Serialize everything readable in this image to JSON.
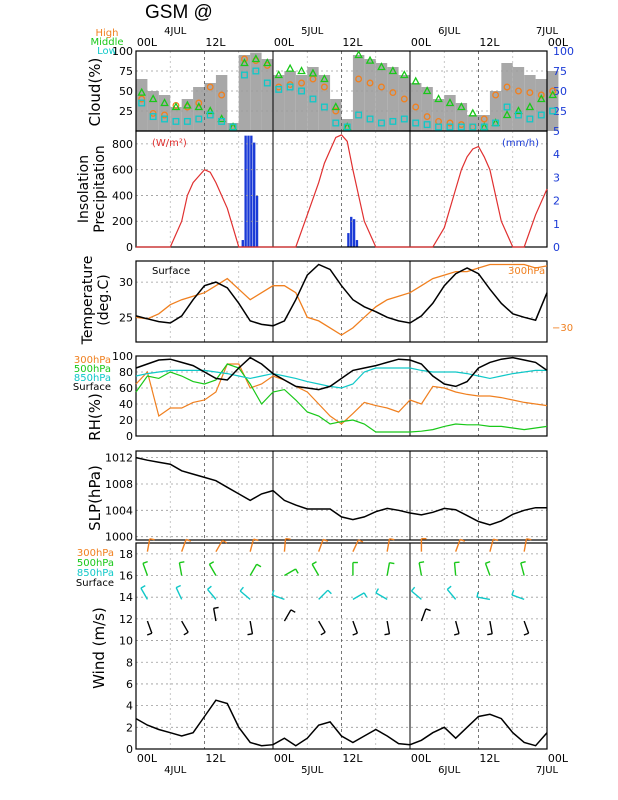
{
  "title": "GSM  @",
  "time_axis": {
    "hours_total": 72,
    "hour_labels": [
      "00L",
      "12L",
      "00L",
      "12L",
      "00L",
      "12L",
      "00L"
    ],
    "hour_label_positions_h": [
      0,
      12,
      24,
      36,
      48,
      60,
      72
    ],
    "date_labels": [
      "4JUL",
      "5JUL",
      "6JUL",
      "7JUL"
    ],
    "date_label_positions_h": [
      6,
      30,
      54,
      82
    ]
  },
  "colors": {
    "high": "#f08020",
    "middle": "#19c819",
    "low": "#10c8c8",
    "surface": "#000000",
    "insolation": "#e03030",
    "precip": "#1a3ad6",
    "rhs": "#1a3ad6"
  },
  "panels": {
    "cloud": {
      "ylabel": "Cloud(%)",
      "legend": [
        "High",
        "Middle",
        "Low"
      ],
      "yticks": [
        "25",
        "50",
        "75",
        "100"
      ],
      "yticks_right": [
        "25",
        "50",
        "75",
        "100"
      ]
    },
    "insolation": {
      "ylabel_top": "Insolation",
      "ylabel_bottom": "Precipitation",
      "unit_left": "(W/m²)",
      "unit_right": "(mm/h)",
      "yticks": [
        "0",
        "200",
        "400",
        "600",
        "800"
      ],
      "yticks_right": [
        "0",
        "1",
        "2",
        "3",
        "4",
        "5"
      ]
    },
    "temperature": {
      "ylabel_top": "Temperature",
      "ylabel_bottom": "(deg.C)",
      "label_surface": "Surface",
      "label_300": "300hPa",
      "right_tick": "−30",
      "yticks": [
        "25",
        "30"
      ]
    },
    "rh": {
      "ylabel": "RH(%)",
      "legend": [
        "300hPa",
        "500hPa",
        "850hPa",
        "Surface"
      ],
      "yticks": [
        "0",
        "20",
        "40",
        "60",
        "80",
        "100"
      ]
    },
    "slp": {
      "ylabel": "SLP(hPa)",
      "yticks": [
        "1000",
        "1004",
        "1008",
        "1012"
      ]
    },
    "wind": {
      "ylabel": "Wind  (m/s)",
      "legend": [
        "300hPa",
        "500hPa",
        "850hPa",
        "Surface"
      ],
      "yticks": [
        "0",
        "2",
        "4",
        "6",
        "8",
        "10",
        "12",
        "14",
        "16",
        "18"
      ]
    }
  },
  "chart_data": [
    {
      "type": "bar",
      "title": "",
      "ylabel": "Cloud(%)",
      "ylim": [
        0,
        100
      ],
      "x_hours": [
        0,
        2,
        4,
        6,
        8,
        10,
        12,
        14,
        16,
        18,
        20,
        22,
        24,
        26,
        28,
        30,
        32,
        34,
        36,
        38,
        40,
        42,
        44,
        46,
        48,
        50,
        52,
        54,
        56,
        58,
        60,
        62,
        64,
        66,
        68,
        70,
        72
      ],
      "total_cover": [
        65,
        50,
        45,
        30,
        40,
        55,
        60,
        70,
        10,
        95,
        98,
        90,
        70,
        75,
        70,
        80,
        70,
        40,
        15,
        95,
        90,
        85,
        80,
        70,
        60,
        55,
        40,
        45,
        35,
        20,
        20,
        50,
        85,
        80,
        70,
        65,
        75
      ],
      "series": [
        {
          "name": "High",
          "values": [
            40,
            22,
            20,
            32,
            30,
            35,
            55,
            45,
            5,
            90,
            88,
            82,
            55,
            58,
            60,
            65,
            55,
            25,
            5,
            65,
            60,
            55,
            48,
            40,
            30,
            18,
            12,
            10,
            8,
            5,
            15,
            45,
            55,
            50,
            48,
            45,
            50
          ]
        },
        {
          "name": "Middle",
          "values": [
            48,
            40,
            35,
            30,
            32,
            30,
            25,
            15,
            5,
            85,
            90,
            85,
            70,
            78,
            75,
            72,
            65,
            30,
            5,
            95,
            88,
            80,
            75,
            70,
            62,
            50,
            40,
            35,
            30,
            22,
            5,
            10,
            20,
            25,
            30,
            40,
            45
          ]
        },
        {
          "name": "Low",
          "values": [
            35,
            18,
            15,
            12,
            12,
            15,
            20,
            12,
            5,
            70,
            75,
            60,
            52,
            55,
            50,
            40,
            30,
            10,
            5,
            20,
            15,
            10,
            12,
            15,
            10,
            8,
            5,
            5,
            5,
            5,
            5,
            10,
            30,
            20,
            15,
            20,
            25
          ]
        }
      ]
    },
    {
      "type": "bar",
      "title": "",
      "ylabel": "Insolation Precipitation",
      "ylim": [
        0,
        900
      ],
      "ylim_right": [
        0,
        5
      ],
      "insolation_x": [
        0,
        2,
        4,
        6,
        8,
        9,
        10,
        11,
        12,
        13,
        14,
        16,
        18,
        20,
        22,
        24,
        26,
        28,
        30,
        32,
        33,
        34,
        35,
        36,
        37,
        38,
        40,
        42,
        44,
        46,
        48,
        50,
        52,
        54,
        56,
        57,
        58,
        59,
        60,
        61,
        62,
        64,
        66,
        68,
        70,
        72
      ],
      "insolation": [
        0,
        0,
        0,
        0,
        200,
        400,
        500,
        550,
        600,
        580,
        500,
        300,
        0,
        0,
        0,
        0,
        0,
        0,
        250,
        500,
        650,
        750,
        850,
        870,
        820,
        600,
        200,
        0,
        0,
        0,
        0,
        0,
        0,
        150,
        450,
        600,
        700,
        760,
        780,
        700,
        600,
        200,
        0,
        0,
        250,
        450
      ],
      "precip_x": [
        18.5,
        19,
        19.5,
        20,
        20.5,
        21,
        37,
        37.5,
        38,
        38.5
      ],
      "precip": [
        0.3,
        4.8,
        4.8,
        4.8,
        4.5,
        2.2,
        0.6,
        1.3,
        1.2,
        0.3
      ]
    },
    {
      "type": "line",
      "title": "",
      "ylabel": "Temperature (deg.C)",
      "ylim": [
        21.5,
        33
      ],
      "x_hours": [
        0,
        2,
        4,
        6,
        8,
        10,
        12,
        14,
        16,
        18,
        20,
        22,
        24,
        26,
        28,
        30,
        32,
        34,
        36,
        38,
        40,
        42,
        44,
        46,
        48,
        50,
        52,
        54,
        56,
        58,
        60,
        62,
        64,
        66,
        68,
        70,
        72
      ],
      "series": [
        {
          "name": "Surface",
          "values": [
            25.2,
            24.8,
            24.4,
            24.2,
            25.2,
            27.5,
            29.5,
            30.0,
            29.2,
            27.0,
            24.5,
            24.0,
            23.8,
            24.5,
            27.5,
            31.0,
            32.5,
            31.8,
            29.5,
            27.5,
            26.5,
            25.8,
            25.0,
            24.5,
            24.2,
            25.2,
            27.0,
            29.5,
            31.2,
            32.0,
            31.2,
            29.0,
            27.0,
            25.5,
            25.0,
            24.6,
            28.5
          ]
        },
        {
          "name": "300hPa",
          "values": [
            25.0,
            24.8,
            25.5,
            26.8,
            27.5,
            28.0,
            28.5,
            29.5,
            30.5,
            29.0,
            27.5,
            28.5,
            29.5,
            29.5,
            28.5,
            25.0,
            24.5,
            23.5,
            22.5,
            23.5,
            25.0,
            26.5,
            27.5,
            28.0,
            28.5,
            29.5,
            30.5,
            31.0,
            31.5,
            31.5,
            32.0,
            32.5,
            32.5,
            32.5,
            32.5,
            32.0,
            32.3
          ]
        }
      ]
    },
    {
      "type": "line",
      "title": "",
      "ylabel": "RH(%)",
      "ylim": [
        0,
        100
      ],
      "x_hours": [
        0,
        2,
        4,
        6,
        8,
        10,
        12,
        14,
        16,
        18,
        20,
        22,
        24,
        26,
        28,
        30,
        32,
        34,
        36,
        38,
        40,
        42,
        44,
        46,
        48,
        50,
        52,
        54,
        56,
        58,
        60,
        62,
        64,
        66,
        68,
        70,
        72
      ],
      "series": [
        {
          "name": "300hPa",
          "values": [
            65,
            80,
            25,
            35,
            35,
            42,
            45,
            55,
            90,
            90,
            60,
            65,
            75,
            70,
            62,
            55,
            40,
            25,
            15,
            28,
            42,
            38,
            35,
            30,
            45,
            40,
            62,
            60,
            55,
            52,
            50,
            50,
            48,
            45,
            42,
            40,
            38
          ]
        },
        {
          "name": "500hPa",
          "values": [
            55,
            75,
            72,
            80,
            75,
            68,
            65,
            70,
            90,
            85,
            65,
            40,
            55,
            58,
            45,
            30,
            25,
            15,
            18,
            20,
            15,
            5,
            5,
            5,
            5,
            6,
            8,
            12,
            15,
            14,
            14,
            12,
            12,
            10,
            8,
            10,
            12
          ]
        },
        {
          "name": "850hPa",
          "values": [
            75,
            78,
            80,
            82,
            82,
            82,
            82,
            80,
            78,
            75,
            72,
            75,
            78,
            75,
            72,
            68,
            65,
            62,
            60,
            65,
            80,
            85,
            85,
            85,
            85,
            82,
            80,
            80,
            80,
            78,
            75,
            72,
            75,
            78,
            80,
            82,
            82
          ]
        },
        {
          "name": "Surface",
          "values": [
            85,
            90,
            95,
            96,
            92,
            88,
            80,
            72,
            70,
            85,
            98,
            90,
            78,
            70,
            62,
            60,
            58,
            62,
            72,
            82,
            85,
            88,
            92,
            96,
            95,
            90,
            75,
            65,
            62,
            68,
            85,
            92,
            96,
            98,
            95,
            92,
            82
          ]
        }
      ]
    },
    {
      "type": "line",
      "title": "",
      "ylabel": "SLP(hPa)",
      "ylim": [
        999.5,
        1013
      ],
      "x_hours": [
        0,
        2,
        4,
        6,
        8,
        10,
        12,
        14,
        16,
        18,
        20,
        22,
        24,
        26,
        28,
        30,
        32,
        34,
        36,
        38,
        40,
        42,
        44,
        46,
        48,
        50,
        52,
        54,
        56,
        58,
        60,
        62,
        64,
        66,
        68,
        70,
        72
      ],
      "series": [
        {
          "name": "SLP",
          "values": [
            1012,
            1011.6,
            1011.3,
            1011,
            1010,
            1009.5,
            1009,
            1008.5,
            1007.5,
            1006.5,
            1005.5,
            1006.5,
            1007,
            1005.5,
            1004.8,
            1004.2,
            1004.2,
            1004.2,
            1003,
            1002.6,
            1003,
            1003.8,
            1004.3,
            1004,
            1003.6,
            1003.3,
            1003.7,
            1004.3,
            1004.1,
            1003.2,
            1002.3,
            1001.8,
            1002.4,
            1003.4,
            1004,
            1004.4,
            1004.4
          ]
        }
      ]
    },
    {
      "type": "line",
      "title": "",
      "ylabel": "Wind (m/s)",
      "ylim": [
        0,
        19
      ],
      "x_hours": [
        0,
        2,
        4,
        6,
        8,
        10,
        12,
        14,
        16,
        18,
        20,
        22,
        24,
        26,
        28,
        30,
        32,
        34,
        36,
        38,
        40,
        42,
        44,
        46,
        48,
        50,
        52,
        54,
        56,
        58,
        60,
        62,
        64,
        66,
        68,
        70,
        72
      ],
      "series": [
        {
          "name": "Surface",
          "values": [
            2.8,
            2.2,
            1.8,
            1.5,
            1.2,
            1.5,
            3.0,
            4.5,
            4.2,
            2.0,
            0.6,
            0.3,
            0.4,
            1.0,
            0.3,
            1.0,
            2.2,
            2.5,
            1.2,
            0.6,
            1.2,
            1.8,
            1.2,
            0.5,
            0.4,
            0.8,
            1.5,
            2.0,
            1.0,
            2.0,
            3.0,
            3.2,
            2.8,
            1.5,
            0.6,
            0.3,
            1.5
          ]
        }
      ]
    }
  ]
}
